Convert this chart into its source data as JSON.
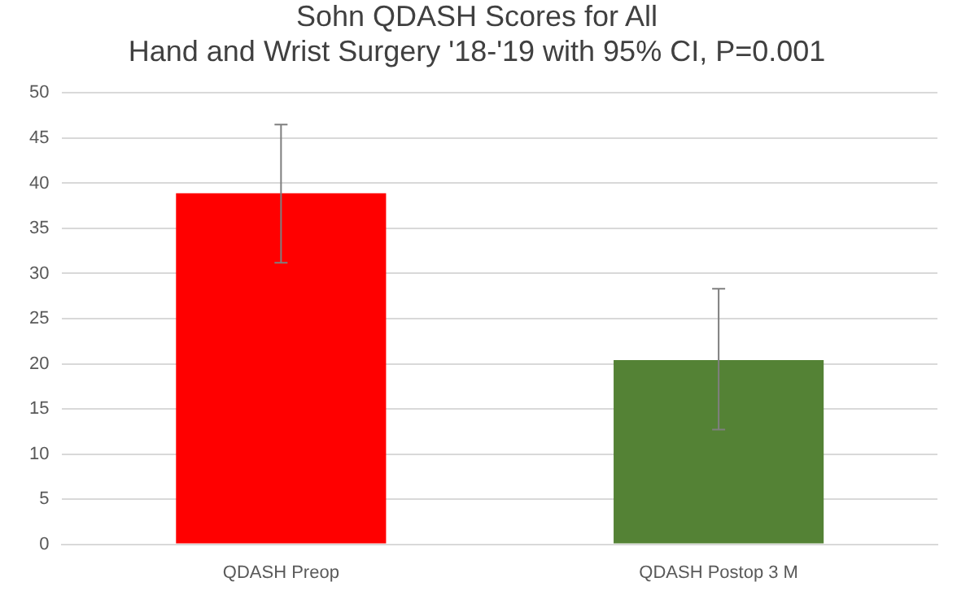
{
  "chart_data": {
    "type": "bar",
    "title": "Sohn QDASH Scores for All\nHand and Wrist Surgery '18-'19 with 95% CI, P=0.001",
    "categories": [
      "QDASH Preop",
      "QDASH Postop 3 M"
    ],
    "values": [
      38.9,
      20.4
    ],
    "colors": [
      "#ff0000",
      "#548235"
    ],
    "errors": [
      [
        31.2,
        46.5
      ],
      [
        12.7,
        28.3
      ]
    ],
    "ylim": [
      0,
      50
    ],
    "yticks": [
      0,
      5,
      10,
      15,
      20,
      25,
      30,
      35,
      40,
      45,
      50
    ],
    "grid": "y",
    "legend": false
  }
}
